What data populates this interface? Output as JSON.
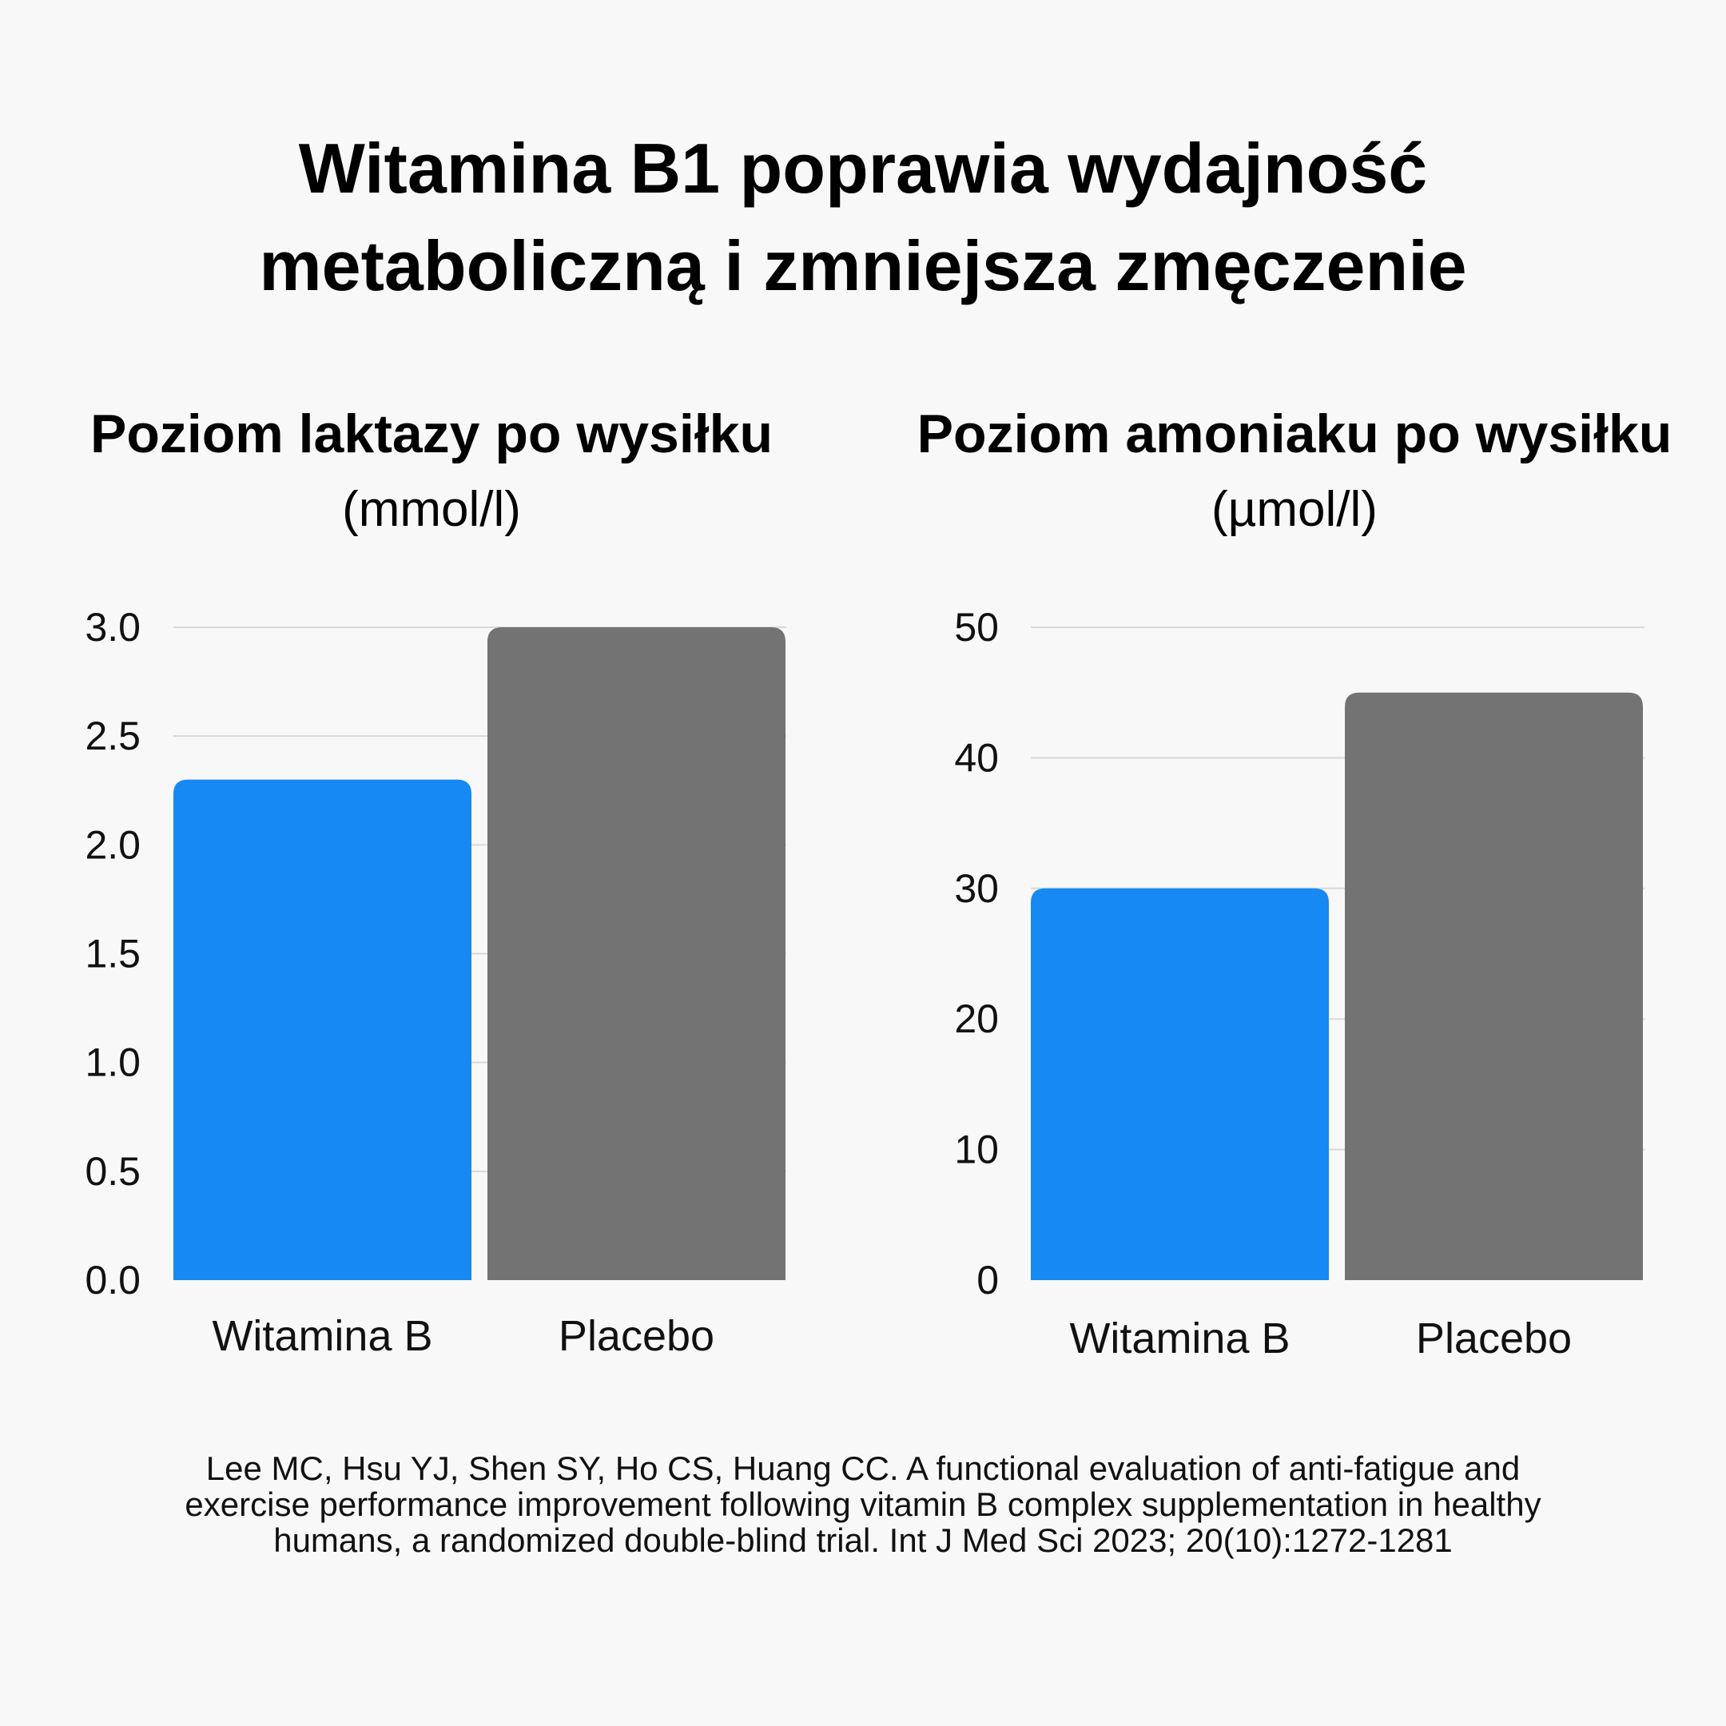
{
  "title": {
    "line1": "Witamina B1 poprawia wydajność",
    "line2": "metaboliczną i zmniejsza zmęczenie"
  },
  "colors": {
    "background": "#f8f8f8",
    "vitamin_bar": "#1689f2",
    "placebo_bar": "#737373",
    "gridline": "#d9d9d9"
  },
  "chart_data": [
    {
      "type": "bar",
      "title": "Poziom laktazy po wysiłku",
      "subtitle": "(mmol/l)",
      "categories": [
        "Witamina B",
        "Placebo"
      ],
      "values": [
        2.3,
        3.0
      ],
      "bar_colors": [
        "#1689f2",
        "#737373"
      ],
      "ylim": [
        0,
        3.0
      ],
      "yticks": [
        0.0,
        0.5,
        1.0,
        1.5,
        2.0,
        2.5,
        3.0
      ],
      "ytick_labels": [
        "0.0",
        "0.5",
        "1.0",
        "1.5",
        "2.0",
        "2.5",
        "3.0"
      ],
      "grid": true
    },
    {
      "type": "bar",
      "title": "Poziom amoniaku po wysiłku",
      "subtitle": "(µmol/l)",
      "categories": [
        "Witamina B",
        "Placebo"
      ],
      "values": [
        30,
        45
      ],
      "bar_colors": [
        "#1689f2",
        "#737373"
      ],
      "ylim": [
        0,
        50
      ],
      "yticks": [
        0,
        10,
        20,
        30,
        40,
        50
      ],
      "ytick_labels": [
        "0",
        "10",
        "20",
        "30",
        "40",
        "50"
      ],
      "grid": true
    }
  ],
  "citation": {
    "line1": "Lee MC, Hsu YJ, Shen SY, Ho CS, Huang CC. A functional evaluation of anti-fatigue and",
    "line2": "exercise performance improvement following vitamin B complex supplementation in healthy",
    "line3": "humans, a randomized double-blind trial. Int J Med Sci 2023; 20(10):1272-1281"
  }
}
